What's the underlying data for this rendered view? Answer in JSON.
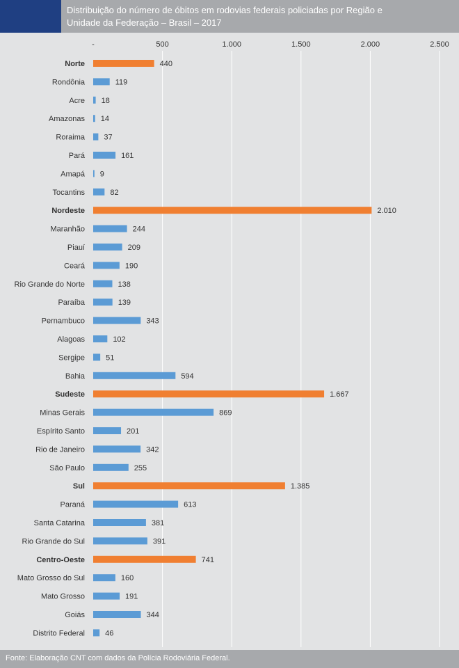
{
  "header": {
    "title": "Distribuição do número de óbitos em rodovias federais policiadas por Região e Unidade da Federação – Brasil – 2017"
  },
  "footer": {
    "source": "Fonte: Elaboração CNT com dados da Polícia Rodoviária Federal."
  },
  "colors": {
    "region": "#f07f31",
    "state": "#5b9bd5",
    "header_accent": "#1f3f82",
    "header_bg": "#a7a9ac",
    "background": "#e2e3e4",
    "gridline": "#ffffff",
    "text": "#333333"
  },
  "chart_data": {
    "type": "bar",
    "orientation": "horizontal",
    "title": "Distribuição do número de óbitos em rodovias federais policiadas por Região e Unidade da Federação – Brasil – 2017",
    "xlabel": "",
    "ylabel": "",
    "xlim": [
      0,
      2500
    ],
    "x_ticks": [
      0,
      500,
      1000,
      1500,
      2000,
      2500
    ],
    "x_tick_labels": [
      "-",
      "500",
      "1.000",
      "1.500",
      "2.000",
      "2.500"
    ],
    "grid": true,
    "categories": [
      "Norte",
      "Rondônia",
      "Acre",
      "Amazonas",
      "Roraima",
      "Pará",
      "Amapá",
      "Tocantins",
      "Nordeste",
      "Maranhão",
      "Piauí",
      "Ceará",
      "Rio Grande do Norte",
      "Paraíba",
      "Pernambuco",
      "Alagoas",
      "Sergipe",
      "Bahia",
      "Sudeste",
      "Minas Gerais",
      "Espírito Santo",
      "Rio de Janeiro",
      "São Paulo",
      "Sul",
      "Paraná",
      "Santa Catarina",
      "Rio Grande do Sul",
      "Centro-Oeste",
      "Mato Grosso do Sul",
      "Mato Grosso",
      "Goiás",
      "Distrito Federal"
    ],
    "values": [
      440,
      119,
      18,
      14,
      37,
      161,
      9,
      82,
      2010,
      244,
      209,
      190,
      138,
      139,
      343,
      102,
      51,
      594,
      1667,
      869,
      201,
      342,
      255,
      1385,
      613,
      381,
      391,
      741,
      160,
      191,
      344,
      46
    ],
    "value_labels": [
      "440",
      "119",
      "18",
      "14",
      "37",
      "161",
      "9",
      "82",
      "2.010",
      "244",
      "209",
      "190",
      "138",
      "139",
      "343",
      "102",
      "51",
      "594",
      "1.667",
      "869",
      "201",
      "342",
      "255",
      "1.385",
      "613",
      "381",
      "391",
      "741",
      "160",
      "191",
      "344",
      "46"
    ],
    "is_region": [
      true,
      false,
      false,
      false,
      false,
      false,
      false,
      false,
      true,
      false,
      false,
      false,
      false,
      false,
      false,
      false,
      false,
      false,
      true,
      false,
      false,
      false,
      false,
      true,
      false,
      false,
      false,
      true,
      false,
      false,
      false,
      false
    ]
  }
}
